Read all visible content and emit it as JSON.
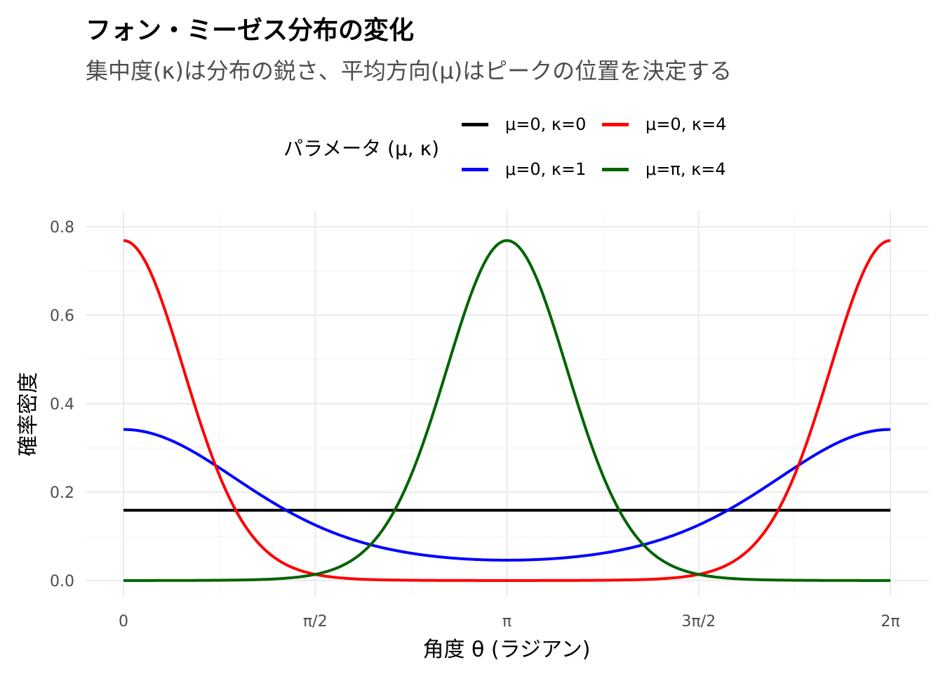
{
  "title": "フォン・ミーゼス分布の変化",
  "subtitle": "集中度(κ)は分布の鋭さ、平均方向(μ)はピークの位置を決定する",
  "legend": {
    "title": "パラメータ (μ, κ)",
    "items": [
      {
        "label": "μ=0, κ=0",
        "color": "#000000"
      },
      {
        "label": "μ=0, κ=4",
        "color": "#ff0000"
      },
      {
        "label": "μ=0, κ=1",
        "color": "#0000ff"
      },
      {
        "label": "μ=π, κ=4",
        "color": "#006400"
      }
    ]
  },
  "chart_data": {
    "type": "line",
    "xlabel": "角度 θ (ラジアン)",
    "ylabel": "確率密度",
    "x_range": [
      0,
      6.283185307
    ],
    "y_range": [
      0,
      0.8
    ],
    "x_ticks": [
      {
        "value": 0,
        "label": "0"
      },
      {
        "value": 1.570796327,
        "label": "π/2"
      },
      {
        "value": 3.141592654,
        "label": "π"
      },
      {
        "value": 4.71238898,
        "label": "3π/2"
      },
      {
        "value": 6.283185307,
        "label": "2π"
      }
    ],
    "y_ticks": [
      {
        "value": 0.0,
        "label": "0.0"
      },
      {
        "value": 0.2,
        "label": "0.2"
      },
      {
        "value": 0.4,
        "label": "0.4"
      },
      {
        "value": 0.6,
        "label": "0.6"
      },
      {
        "value": 0.8,
        "label": "0.8"
      }
    ],
    "grid": true,
    "legend_position": "top",
    "series": [
      {
        "name": "μ=0, κ=0",
        "color": "#000000",
        "mu": 0,
        "kappa": 0
      },
      {
        "name": "μ=0, κ=1",
        "color": "#0000ff",
        "mu": 0,
        "kappa": 1
      },
      {
        "name": "μ=0, κ=4",
        "color": "#ff0000",
        "mu": 0,
        "kappa": 4
      },
      {
        "name": "μ=π, κ=4",
        "color": "#006400",
        "mu": 3.141592654,
        "kappa": 4
      }
    ]
  }
}
